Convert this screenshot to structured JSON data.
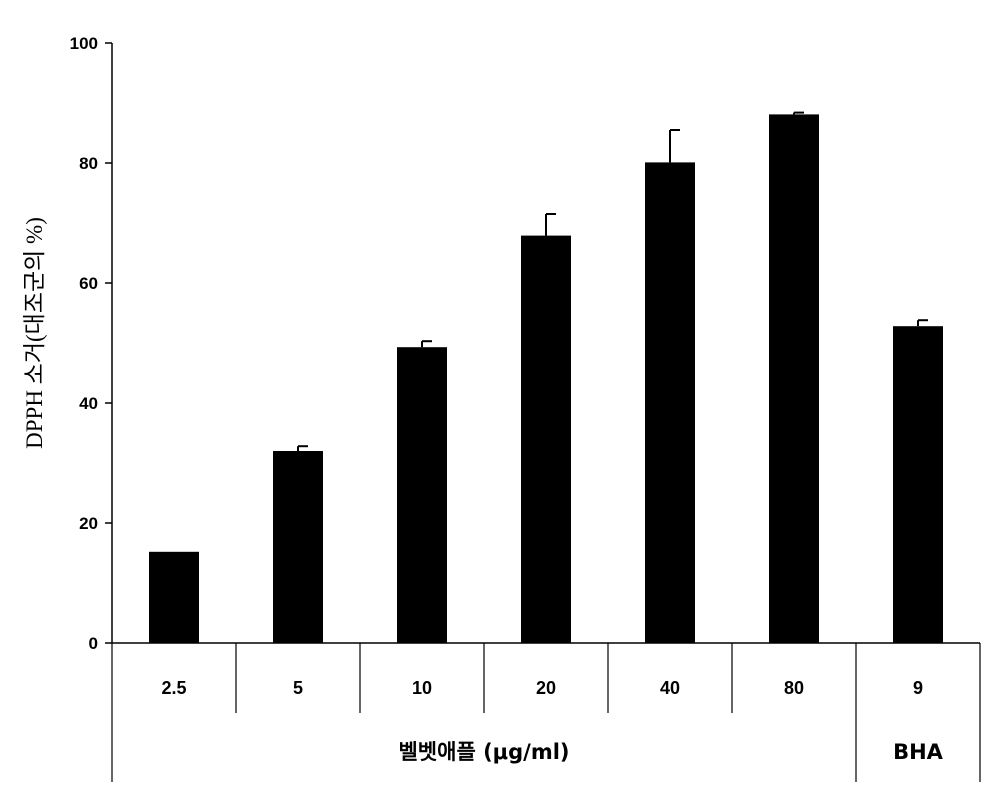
{
  "chart_data": {
    "type": "bar",
    "ylabel": "DPPH 소거(대조군의 %)",
    "ylim": [
      0,
      100
    ],
    "yticks": [
      0,
      20,
      40,
      60,
      80,
      100
    ],
    "categories": [
      "2.5",
      "5",
      "10",
      "20",
      "40",
      "80",
      "9"
    ],
    "values": [
      15.2,
      32,
      49.3,
      67.9,
      80.1,
      88.1,
      52.8
    ],
    "errors": [
      0,
      0.8,
      1.0,
      3.6,
      5.4,
      0.3,
      1.0
    ],
    "groups": [
      {
        "label": "벨벳애플 (μg/ml)",
        "span": [
          0,
          5
        ]
      },
      {
        "label": "BHA",
        "span": [
          6,
          6
        ]
      }
    ],
    "bar_color": "#000000",
    "grid": false
  }
}
